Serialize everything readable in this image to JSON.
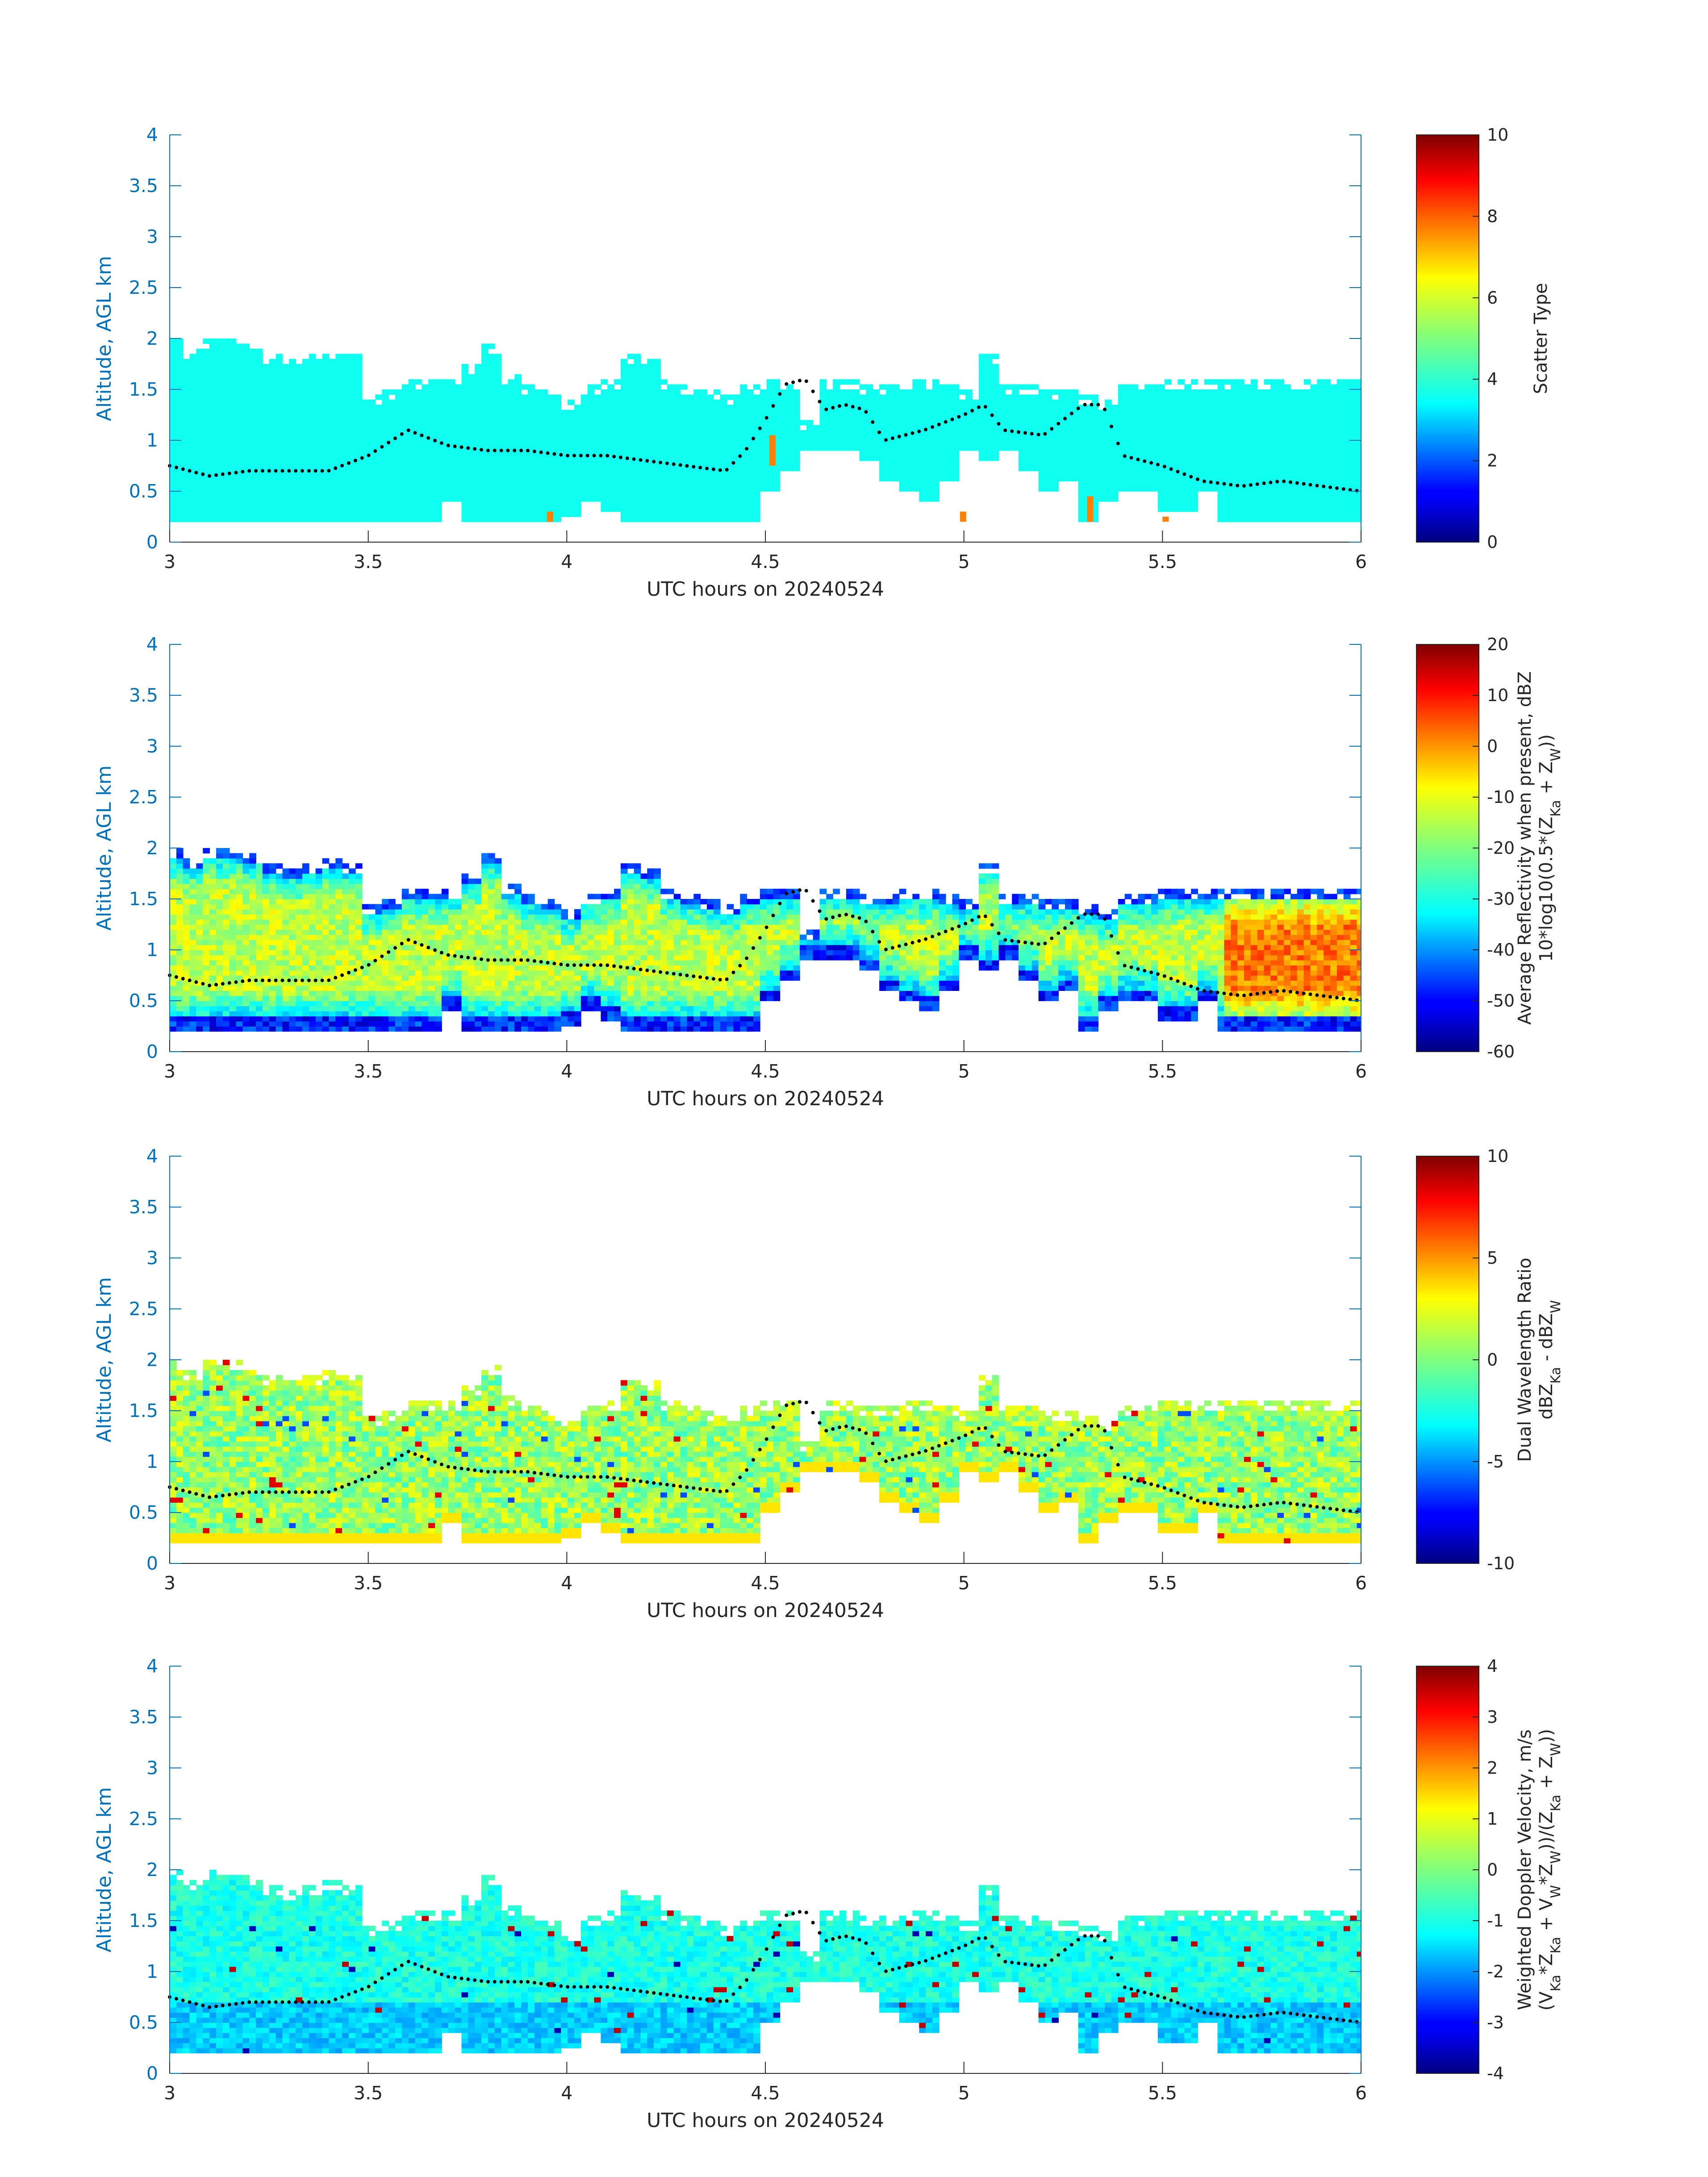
{
  "figure": {
    "x_tick_labels": [
      "3",
      "3.5",
      "4",
      "4.5",
      "5",
      "5.5",
      "6"
    ],
    "y_tick_labels": [
      "0",
      "0.5",
      "1",
      "1.5",
      "2",
      "2.5",
      "3",
      "3.5",
      "4"
    ],
    "mean_altitude_dots": {
      "note_type": "black dotted cloud-mean line shared by all panels",
      "x_hours": [
        3.0,
        3.1,
        3.2,
        3.3,
        3.4,
        3.5,
        3.6,
        3.7,
        3.8,
        3.9,
        4.0,
        4.1,
        4.2,
        4.3,
        4.4,
        4.45,
        4.5,
        4.55,
        4.6,
        4.65,
        4.7,
        4.75,
        4.8,
        4.9,
        5.0,
        5.05,
        5.1,
        5.2,
        5.3,
        5.35,
        5.4,
        5.5,
        5.6,
        5.7,
        5.8,
        5.9,
        6.0
      ],
      "y_km": [
        0.75,
        0.65,
        0.7,
        0.7,
        0.7,
        0.85,
        1.1,
        0.95,
        0.9,
        0.9,
        0.85,
        0.85,
        0.8,
        0.75,
        0.7,
        0.9,
        1.2,
        1.55,
        1.6,
        1.3,
        1.35,
        1.3,
        1.0,
        1.1,
        1.25,
        1.35,
        1.1,
        1.05,
        1.35,
        1.35,
        0.85,
        0.75,
        0.6,
        0.55,
        0.6,
        0.55,
        0.5
      ]
    }
  },
  "chart_data": [
    {
      "type": "heatmap",
      "title": "",
      "xlabel": "UTC hours on 20240524",
      "ylabel": "Altitude, AGL km",
      "xlim": [
        3,
        6
      ],
      "ylim": [
        0,
        4
      ],
      "colorbar": {
        "label_lines": [
          "Scatter Type"
        ],
        "range": [
          0,
          10
        ],
        "ticks": [
          "0",
          "2",
          "4",
          "6",
          "8",
          "10"
        ]
      },
      "field": "scatter_type",
      "dominant_value": 3.9,
      "special_values": [
        {
          "x_hours": 3.95,
          "y_range_km": [
            0.2,
            0.3
          ],
          "value": 7.5
        },
        {
          "x_hours": 4.51,
          "y_range_km": [
            0.75,
            1.05
          ],
          "value": 7.5
        },
        {
          "x_hours": 4.99,
          "y_range_km": [
            0.2,
            0.3
          ],
          "value": 7.5
        },
        {
          "x_hours": 5.31,
          "y_range_km": [
            0.2,
            0.45
          ],
          "value": 7.5
        },
        {
          "x_hours": 5.5,
          "y_range_km": [
            0.2,
            0.25
          ],
          "value": 7.5
        }
      ]
    },
    {
      "type": "heatmap",
      "title": "",
      "xlabel": "UTC hours on 20240524",
      "ylabel": "Altitude, AGL km",
      "xlim": [
        3,
        6
      ],
      "ylim": [
        0,
        4
      ],
      "colorbar": {
        "label_lines": [
          "Average Reflectivity when present, dBZ",
          "10*log10(0.5*(Z",
          "Ka",
          " + Z",
          "W",
          "))"
        ],
        "range": [
          -60,
          20
        ],
        "ticks": [
          "-60",
          "-50",
          "-40",
          "-30",
          "-20",
          "-10",
          "0",
          "10",
          "20"
        ]
      },
      "field": "reflectivity_dBZ",
      "typical_core_value": -15,
      "typical_edge_value": -55,
      "late_period_core_value": 0
    },
    {
      "type": "heatmap",
      "title": "",
      "xlabel": "UTC hours on 20240524",
      "ylabel": "Altitude, AGL km",
      "xlim": [
        3,
        6
      ],
      "ylim": [
        0,
        4
      ],
      "colorbar": {
        "label_lines": [
          "Dual Wavelength Ratio",
          "dBZ",
          "Ka",
          " - dBZ",
          "W"
        ],
        "range": [
          -10,
          10
        ],
        "ticks": [
          "-10",
          "-5",
          "0",
          "5",
          "10"
        ]
      },
      "field": "dual_wavelength_ratio_dB",
      "typical_value": 0.5,
      "bottom_row_value": 3
    },
    {
      "type": "heatmap",
      "title": "",
      "xlabel": "UTC hours on 20240524",
      "ylabel": "Altitude, AGL km",
      "xlim": [
        3,
        6
      ],
      "ylim": [
        0,
        4
      ],
      "colorbar": {
        "label_lines": [
          "Weighted Doppler Velocity, m/s",
          "(V",
          "Ka",
          "*Z",
          "Ka",
          " + V",
          "W",
          "*Z",
          "W",
          "))/(Z",
          "Ka",
          " + Z",
          "W",
          "))"
        ],
        "range": [
          -4,
          4
        ],
        "ticks": [
          "-4",
          "-3",
          "-2",
          "-1",
          "0",
          "1",
          "2",
          "3",
          "4"
        ]
      },
      "field": "doppler_velocity_ms",
      "typical_value": -0.8,
      "lower_value": -1.4
    }
  ],
  "cloud_mask": {
    "description": "column-wise cloud top/base in km, shared by all panels (same cloud field)",
    "columns": [
      [
        3.0,
        0.2,
        2.0
      ],
      [
        3.05,
        0.2,
        1.9
      ],
      [
        3.1,
        0.2,
        2.0
      ],
      [
        3.15,
        0.2,
        2.0
      ],
      [
        3.2,
        0.2,
        1.95
      ],
      [
        3.25,
        0.2,
        1.85
      ],
      [
        3.3,
        0.2,
        1.8
      ],
      [
        3.35,
        0.2,
        1.85
      ],
      [
        3.4,
        0.2,
        1.9
      ],
      [
        3.45,
        0.2,
        1.85
      ],
      [
        3.5,
        0.2,
        1.45
      ],
      [
        3.55,
        0.2,
        1.5
      ],
      [
        3.6,
        0.2,
        1.6
      ],
      [
        3.65,
        0.2,
        1.6
      ],
      [
        3.7,
        0.4,
        1.6
      ],
      [
        3.75,
        0.2,
        1.75
      ],
      [
        3.8,
        0.2,
        1.95
      ],
      [
        3.85,
        0.2,
        1.65
      ],
      [
        3.9,
        0.2,
        1.55
      ],
      [
        3.95,
        0.2,
        1.5
      ],
      [
        4.0,
        0.25,
        1.4
      ],
      [
        4.05,
        0.4,
        1.55
      ],
      [
        4.1,
        0.3,
        1.6
      ],
      [
        4.15,
        0.2,
        1.85
      ],
      [
        4.2,
        0.2,
        1.8
      ],
      [
        4.25,
        0.2,
        1.6
      ],
      [
        4.3,
        0.2,
        1.55
      ],
      [
        4.35,
        0.2,
        1.5
      ],
      [
        4.4,
        0.2,
        1.45
      ],
      [
        4.45,
        0.2,
        1.55
      ],
      [
        4.5,
        0.5,
        1.6
      ],
      [
        4.55,
        0.7,
        1.6
      ],
      [
        4.6,
        0.9,
        1.2
      ],
      [
        4.65,
        0.9,
        1.6
      ],
      [
        4.7,
        0.9,
        1.6
      ],
      [
        4.75,
        0.8,
        1.55
      ],
      [
        4.8,
        0.6,
        1.55
      ],
      [
        4.85,
        0.5,
        1.6
      ],
      [
        4.9,
        0.4,
        1.6
      ],
      [
        4.95,
        0.6,
        1.55
      ],
      [
        5.0,
        0.9,
        1.5
      ],
      [
        5.05,
        0.8,
        1.85
      ],
      [
        5.1,
        0.9,
        1.55
      ],
      [
        5.15,
        0.7,
        1.55
      ],
      [
        5.2,
        0.5,
        1.5
      ],
      [
        5.25,
        0.6,
        1.5
      ],
      [
        5.3,
        0.2,
        1.45
      ],
      [
        5.35,
        0.4,
        1.4
      ],
      [
        5.4,
        0.5,
        1.55
      ],
      [
        5.45,
        0.5,
        1.55
      ],
      [
        5.5,
        0.3,
        1.6
      ],
      [
        5.55,
        0.3,
        1.6
      ],
      [
        5.6,
        0.5,
        1.6
      ],
      [
        5.65,
        0.2,
        1.6
      ],
      [
        5.7,
        0.2,
        1.6
      ],
      [
        5.75,
        0.2,
        1.6
      ],
      [
        5.8,
        0.2,
        1.6
      ],
      [
        5.85,
        0.2,
        1.6
      ],
      [
        5.9,
        0.2,
        1.6
      ],
      [
        5.95,
        0.2,
        1.6
      ]
    ]
  }
}
